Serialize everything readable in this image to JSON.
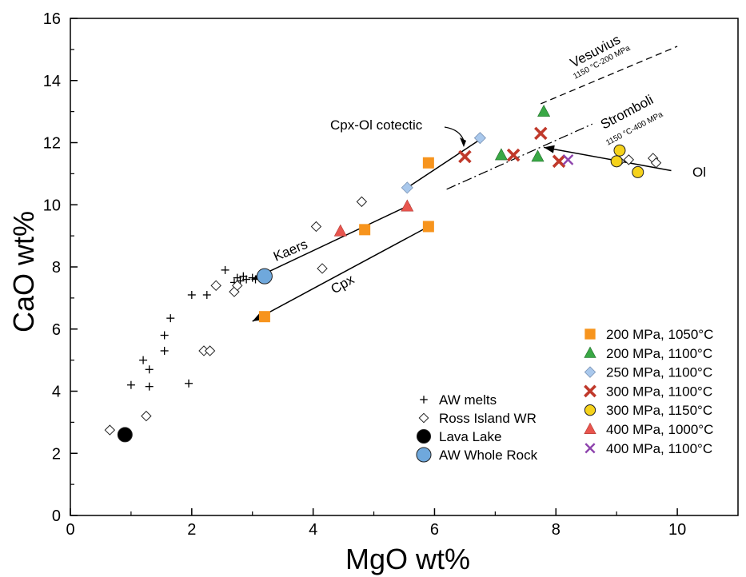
{
  "chart_data": {
    "type": "scatter",
    "title": "",
    "xlabel": "MgO wt%",
    "ylabel": "CaO wt%",
    "xlim": [
      0,
      11
    ],
    "ylim": [
      0,
      16
    ],
    "x_ticks": [
      "0",
      "2",
      "4",
      "6",
      "8",
      "10"
    ],
    "y_ticks": [
      "0",
      "2",
      "4",
      "6",
      "8",
      "10",
      "12",
      "14",
      "16"
    ],
    "grid": false,
    "legend_placement": "bottom-right",
    "series": [
      {
        "name": "AW melts",
        "marker": "plus",
        "color": "#000000",
        "points": [
          [
            1.0,
            4.2
          ],
          [
            1.2,
            5.0
          ],
          [
            1.3,
            4.7
          ],
          [
            1.3,
            4.15
          ],
          [
            1.55,
            5.3
          ],
          [
            1.55,
            5.8
          ],
          [
            1.65,
            6.35
          ],
          [
            1.95,
            4.25
          ],
          [
            2.0,
            7.1
          ],
          [
            2.25,
            7.1
          ],
          [
            2.55,
            7.9
          ],
          [
            2.7,
            7.5
          ],
          [
            2.75,
            7.65
          ],
          [
            2.8,
            7.55
          ],
          [
            2.85,
            7.7
          ],
          [
            2.9,
            7.6
          ],
          [
            3.0,
            7.65
          ],
          [
            3.05,
            7.6
          ]
        ]
      },
      {
        "name": "Ross Island WR",
        "marker": "diamond-open",
        "color": "#000000",
        "points": [
          [
            0.65,
            2.75
          ],
          [
            1.25,
            3.2
          ],
          [
            2.2,
            5.3
          ],
          [
            2.3,
            5.3
          ],
          [
            2.4,
            7.4
          ],
          [
            2.7,
            7.2
          ],
          [
            2.75,
            7.4
          ],
          [
            4.05,
            9.3
          ],
          [
            4.15,
            7.95
          ],
          [
            4.8,
            10.1
          ],
          [
            9.05,
            11.4
          ],
          [
            9.2,
            11.45
          ],
          [
            9.6,
            11.5
          ],
          [
            9.65,
            11.35
          ]
        ]
      },
      {
        "name": "Lava Lake",
        "marker": "circle",
        "color": "#000000",
        "points": [
          [
            0.9,
            2.6
          ]
        ]
      },
      {
        "name": "AW Whole Rock",
        "marker": "circle",
        "color": "#6fa8dc",
        "points": [
          [
            3.2,
            7.7
          ]
        ]
      },
      {
        "name": "200 MPa, 1050°C",
        "marker": "square",
        "color": "#f7941d",
        "points": [
          [
            3.2,
            6.4
          ],
          [
            4.85,
            9.2
          ],
          [
            5.9,
            11.35
          ],
          [
            5.9,
            9.3
          ]
        ]
      },
      {
        "name": "200 MPa, 1100°C",
        "marker": "triangle",
        "color": "#39a845",
        "points": [
          [
            7.1,
            11.6
          ],
          [
            7.7,
            11.55
          ],
          [
            7.8,
            13.0
          ]
        ]
      },
      {
        "name": "250 MPa, 1100°C",
        "marker": "diamond",
        "color": "#a9c8ec",
        "points": [
          [
            5.55,
            10.55
          ],
          [
            6.75,
            12.15
          ]
        ]
      },
      {
        "name": "300 MPa, 1100°C",
        "marker": "x-thick",
        "color": "#c0392b",
        "points": [
          [
            6.5,
            11.55
          ],
          [
            7.3,
            11.6
          ],
          [
            7.75,
            12.3
          ],
          [
            8.05,
            11.4
          ]
        ]
      },
      {
        "name": "300 MPa, 1150°C",
        "marker": "circle",
        "color": "#f5d21b",
        "points": [
          [
            9.0,
            11.4
          ],
          [
            9.05,
            11.75
          ],
          [
            9.35,
            11.05
          ]
        ]
      },
      {
        "name": "400 MPa, 1000°C",
        "marker": "triangle",
        "color": "#e8554e",
        "points": [
          [
            4.45,
            9.15
          ],
          [
            5.55,
            9.95
          ]
        ]
      },
      {
        "name": "400 MPa, 1100°C",
        "marker": "x-thin",
        "color": "#8e44ad",
        "points": [
          [
            8.2,
            11.45
          ]
        ]
      }
    ],
    "annotations": {
      "kaers": "Kaers",
      "cpx": "Cpx",
      "ol": "Ol",
      "cotectic": "Cpx-Ol cotectic",
      "vesuvius": "Vesuvius",
      "vesuvius_cond": "1150 °C-200 MPa",
      "stromboli": "Stromboli",
      "stromboli_cond": "1150 °C-400 MPa"
    },
    "trend_lines": [
      {
        "name": "kaers-trend",
        "from": [
          5.6,
          10.0
        ],
        "to": [
          3.0,
          7.6
        ],
        "arrow": true
      },
      {
        "name": "cpx-trend",
        "from": [
          5.95,
          9.35
        ],
        "to": [
          3.0,
          6.25
        ],
        "arrow": true
      },
      {
        "name": "ol-trend",
        "from": [
          9.9,
          11.1
        ],
        "to": [
          7.8,
          11.85
        ],
        "arrow": true
      },
      {
        "name": "cpx-ol-cotectic-line",
        "from": [
          5.55,
          10.55
        ],
        "to": [
          6.75,
          12.1
        ],
        "arrow": false
      }
    ],
    "ref_lines": [
      {
        "name": "vesuvius-line",
        "from": [
          7.75,
          13.25
        ],
        "to": [
          10.0,
          15.1
        ],
        "style": "dash"
      },
      {
        "name": "stromboli-line",
        "from": [
          6.2,
          10.5
        ],
        "to": [
          8.6,
          12.6
        ],
        "style": "dashdot"
      }
    ]
  }
}
